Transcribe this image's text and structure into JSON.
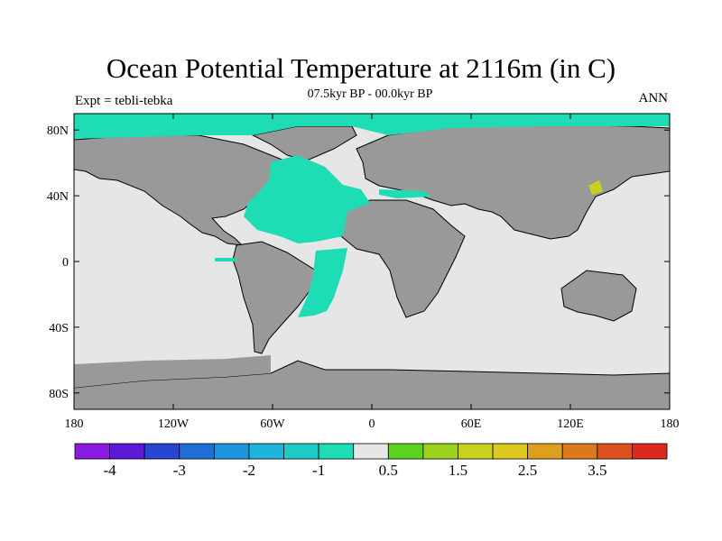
{
  "title": "Ocean Potential Temperature at 2116m (in C)",
  "subtitle": "07.5kyr BP - 00.0kyr BP",
  "left_label": "Expt = tebli-tebka",
  "right_label": "ANN",
  "axes": {
    "lon_ticks": [
      {
        "lon": -180,
        "label": "180"
      },
      {
        "lon": -120,
        "label": "120W"
      },
      {
        "lon": -60,
        "label": "60W"
      },
      {
        "lon": 0,
        "label": "0"
      },
      {
        "lon": 60,
        "label": "60E"
      },
      {
        "lon": 120,
        "label": "120E"
      },
      {
        "lon": 180,
        "label": "180"
      }
    ],
    "lat_ticks": [
      {
        "lat": 80,
        "label": "80N"
      },
      {
        "lat": 40,
        "label": "40N"
      },
      {
        "lat": 0,
        "label": "0"
      },
      {
        "lat": -40,
        "label": "40S"
      },
      {
        "lat": -80,
        "label": "80S"
      }
    ]
  },
  "colorbar": {
    "colors": [
      "#8a1ae0",
      "#5a1ad8",
      "#2846d2",
      "#1e6ed8",
      "#1e94dc",
      "#1eb4dc",
      "#1ecac6",
      "#1edcb4",
      "#e6e6e6",
      "#5ad21e",
      "#9ad21e",
      "#c8d21e",
      "#dcc81e",
      "#dca01e",
      "#dc781e",
      "#dc501e",
      "#dc281e"
    ],
    "labels": [
      {
        "index": 1,
        "text": "-4"
      },
      {
        "index": 3,
        "text": "-3"
      },
      {
        "index": 5,
        "text": "-2"
      },
      {
        "index": 7,
        "text": "-1"
      },
      {
        "index": 9,
        "text": "0.5"
      },
      {
        "index": 11,
        "text": "1.5"
      },
      {
        "index": 13,
        "text": "2.5"
      },
      {
        "index": 15,
        "text": "3.5"
      }
    ]
  },
  "map_colors": {
    "land": "#999999",
    "ocean_neutral": "#e6e6e6",
    "ocean_cool": "#1edcb4",
    "ocean_warm": "#c8d21e"
  }
}
